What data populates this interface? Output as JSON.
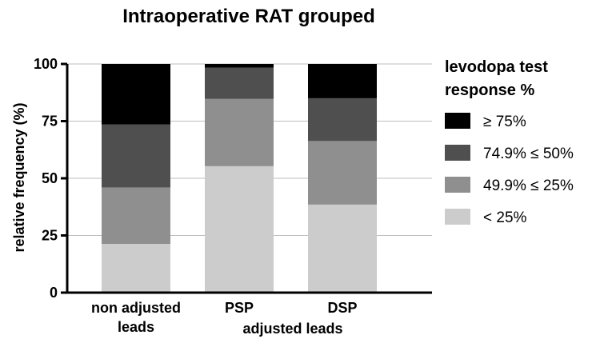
{
  "chart_data": {
    "type": "bar",
    "stacked": true,
    "title": "Intraoperative RAT grouped",
    "ylabel": "relative frequency  (%)",
    "ylim": [
      0,
      100
    ],
    "yticks": [
      0,
      25,
      50,
      75,
      100
    ],
    "grid": true,
    "categories": [
      "non adjusted leads",
      "PSP",
      "DSP"
    ],
    "category_lines": [
      [
        "non adjusted",
        "leads"
      ],
      [
        "PSP"
      ],
      [
        "DSP"
      ]
    ],
    "group_label": "adjusted leads",
    "legend_title": [
      "levodopa test",
      "response %"
    ],
    "legend_position": "right",
    "series": [
      {
        "name": "< 25%",
        "color": "#cccccc",
        "values": [
          21.3,
          55.3,
          38.5
        ]
      },
      {
        "name": "49.9% ≤ 25%",
        "color": "#8f8f8f",
        "values": [
          24.7,
          29.4,
          27.8
        ]
      },
      {
        "name": "74.9% ≤ 50%",
        "color": "#4f4f4f",
        "values": [
          27.5,
          13.7,
          18.7
        ]
      },
      {
        "name": "≥ 75%",
        "color": "#000000",
        "values": [
          26.5,
          1.6,
          15.0
        ]
      }
    ]
  }
}
